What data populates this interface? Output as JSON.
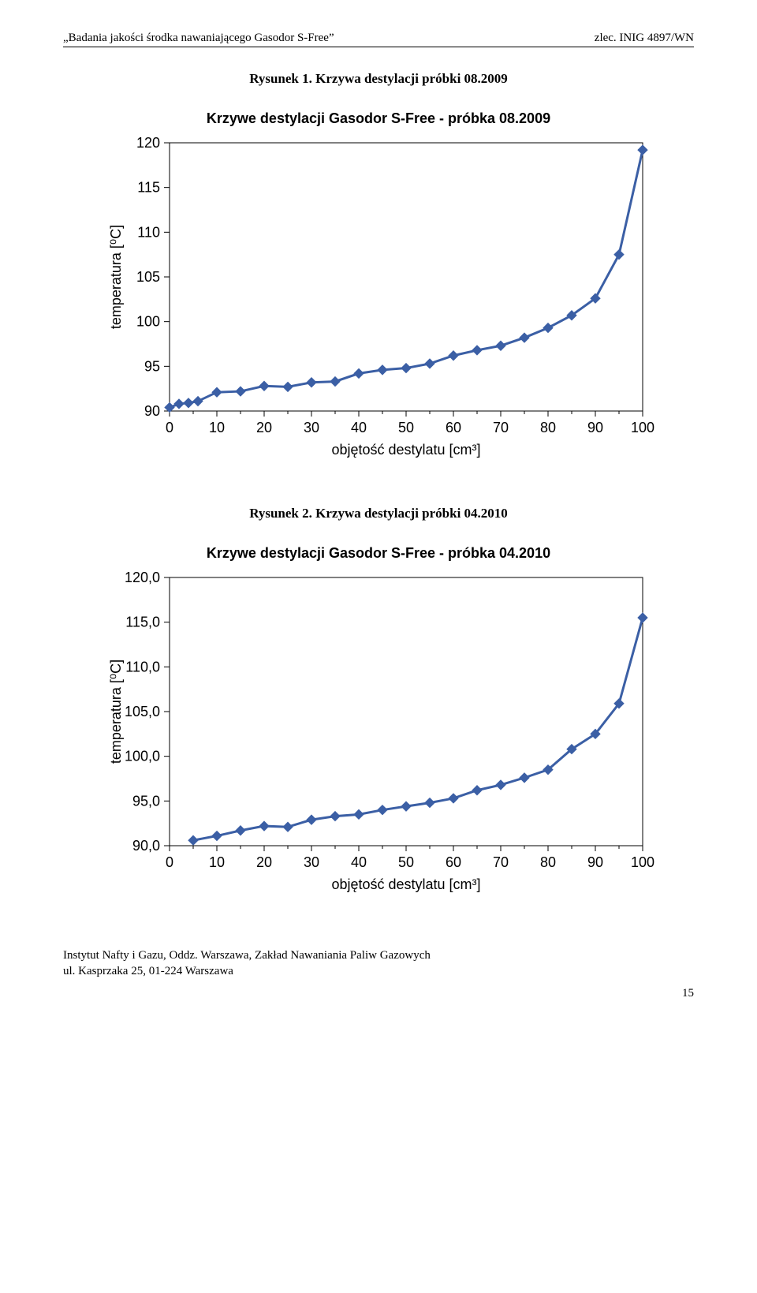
{
  "header": {
    "left": "„Badania jakości środka nawaniającego Gasodor S-Free”",
    "right": "zlec. INIG 4897/WN"
  },
  "figure1": {
    "caption": "Rysunek 1. Krzywa destylacji próbki 08.2009",
    "chart": {
      "type": "line",
      "title": "Krzywe destylacji Gasodor S-Free - próbka 08.2009",
      "xlabel": "objętość destylatu [cm³]",
      "ylabel": "temperatura [⁰C]",
      "xlim": [
        0,
        100
      ],
      "ylim": [
        90,
        120
      ],
      "xtick_step": 10,
      "ytick_step": 5,
      "x_minor_step": 5,
      "x": [
        0,
        2,
        4,
        6,
        10,
        15,
        20,
        25,
        30,
        35,
        40,
        45,
        50,
        55,
        60,
        65,
        70,
        75,
        80,
        85,
        90,
        95,
        100
      ],
      "y": [
        90.4,
        90.8,
        90.9,
        91.1,
        92.1,
        92.2,
        92.8,
        92.7,
        93.2,
        93.3,
        94.2,
        94.6,
        94.8,
        95.3,
        96.2,
        96.8,
        97.3,
        98.2,
        99.3,
        100.7,
        102.6,
        107.5,
        119.2
      ],
      "line_color": "#3b5fa5",
      "marker_color": "#3b5fa5",
      "marker_style": "diamond",
      "marker_size": 6,
      "line_width": 3,
      "background_color": "#ffffff",
      "border_color": "#000000",
      "font_family": "Arial",
      "tick_fontsize": 18,
      "label_fontsize": 18,
      "title_fontsize": 18,
      "title_font_weight": "bold"
    }
  },
  "figure2": {
    "caption": "Rysunek 2. Krzywa destylacji próbki 04.2010",
    "chart": {
      "type": "line",
      "title": "Krzywe destylacji Gasodor S-Free - próbka 04.2010",
      "xlabel": "objętość destylatu [cm³]",
      "ylabel": "temperatura [⁰C]",
      "xlim": [
        0,
        100
      ],
      "ylim": [
        90.0,
        120.0
      ],
      "xtick_step": 10,
      "ytick_step": 5,
      "x_minor_step": 5,
      "y_decimals": 1,
      "x": [
        5,
        10,
        15,
        20,
        25,
        30,
        35,
        40,
        45,
        50,
        55,
        60,
        65,
        70,
        75,
        80,
        85,
        90,
        95,
        100
      ],
      "y": [
        90.6,
        91.1,
        91.7,
        92.2,
        92.1,
        92.9,
        93.3,
        93.5,
        94.0,
        94.4,
        94.8,
        95.3,
        96.2,
        96.8,
        97.6,
        98.5,
        100.8,
        102.5,
        105.9,
        115.5
      ],
      "line_color": "#3b5fa5",
      "marker_color": "#3b5fa5",
      "marker_style": "diamond",
      "marker_size": 6,
      "line_width": 3,
      "background_color": "#ffffff",
      "border_color": "#000000",
      "font_family": "Arial",
      "tick_fontsize": 18,
      "label_fontsize": 18,
      "title_fontsize": 18,
      "title_font_weight": "bold"
    }
  },
  "footer": {
    "line1": "Instytut Nafty i Gazu, Oddz. Warszawa, Zakład Nawaniania Paliw Gazowych",
    "line2": "ul. Kasprzaka 25, 01-224 Warszawa",
    "page_number": "15"
  }
}
